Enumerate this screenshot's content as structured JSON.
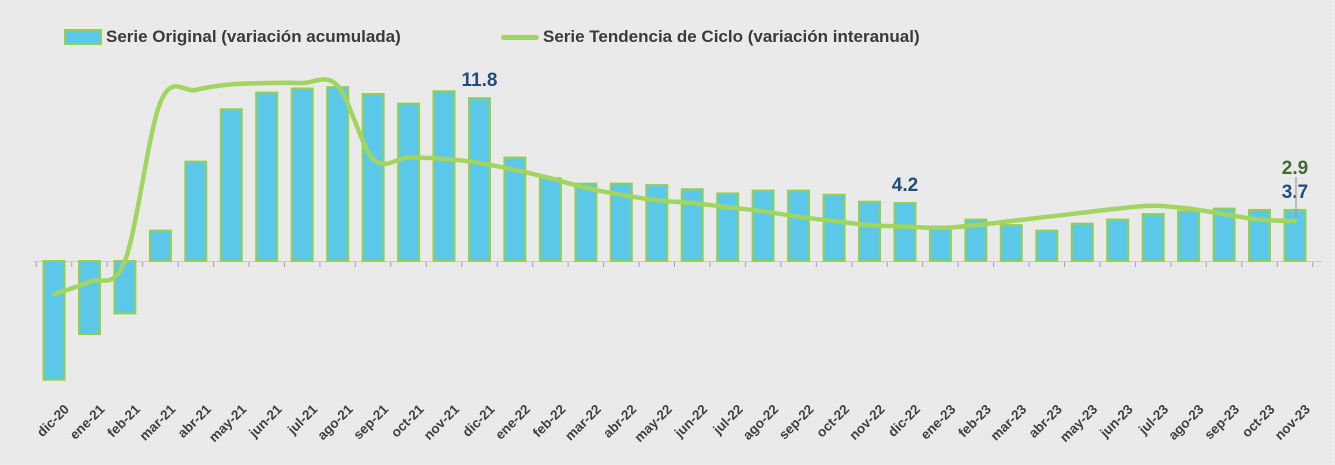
{
  "legend": {
    "items": [
      {
        "label": "Serie Original (variación acumulada)",
        "swatch": "bar-swatch"
      },
      {
        "label": "Serie Tendencia de Ciclo (variación interanual)",
        "swatch": "line-swatch"
      }
    ]
  },
  "chart_data": {
    "type": "bar",
    "subtype": "bar-with-smoothed-line-overlay",
    "categories": [
      "dic-20",
      "ene-21",
      "feb-21",
      "mar-21",
      "abr-21",
      "may-21",
      "jun-21",
      "jul-21",
      "ago-21",
      "sep-21",
      "oct-21",
      "nov-21",
      "dic-21",
      "ene-22",
      "feb-22",
      "mar-22",
      "abr-22",
      "may-22",
      "jun-22",
      "jul-22",
      "ago-22",
      "sep-22",
      "oct-22",
      "nov-22",
      "dic-22",
      "ene-23",
      "feb-23",
      "mar-23",
      "abr-23",
      "may-23",
      "jun-23",
      "jul-23",
      "ago-23",
      "sep-23",
      "oct-23",
      "nov-23"
    ],
    "series": [
      {
        "name": "Serie Original (variación acumulada)",
        "type": "bar",
        "values": [
          -8.6,
          -5.3,
          -3.8,
          2.2,
          7.2,
          11.0,
          12.2,
          12.5,
          12.6,
          12.1,
          11.4,
          12.3,
          11.8,
          7.5,
          6.0,
          5.6,
          5.6,
          5.5,
          5.2,
          4.9,
          5.1,
          5.1,
          4.8,
          4.3,
          4.2,
          2.5,
          3.0,
          2.6,
          2.2,
          2.7,
          3.0,
          3.4,
          3.6,
          3.8,
          3.7,
          3.7
        ]
      },
      {
        "name": "Serie Tendencia de Ciclo (variación interanual)",
        "type": "line",
        "values": [
          -2.4,
          -1.5,
          0.0,
          11.5,
          12.4,
          12.8,
          12.9,
          12.9,
          12.7,
          7.4,
          7.5,
          7.4,
          7.1,
          6.6,
          6.0,
          5.3,
          4.8,
          4.4,
          4.2,
          3.9,
          3.6,
          3.2,
          2.9,
          2.6,
          2.5,
          2.4,
          2.6,
          2.9,
          3.2,
          3.5,
          3.8,
          4.0,
          3.8,
          3.4,
          3.0,
          2.9
        ]
      }
    ],
    "data_labels": [
      {
        "series": 0,
        "category": "dic-21",
        "text": "11.8"
      },
      {
        "series": 0,
        "category": "dic-22",
        "text": "4.2"
      },
      {
        "series": 0,
        "category": "nov-23",
        "text": "3.7"
      },
      {
        "series": 1,
        "category": "nov-23",
        "text": "2.9",
        "leader_line": true
      }
    ],
    "title": "",
    "xlabel": "",
    "ylabel": "",
    "ylim": [
      -9,
      14
    ],
    "grid": false,
    "y_axis_visible": false,
    "x_axis_crosses_at": 0,
    "x_label_rotation_deg": -45,
    "legend_position": "top"
  },
  "colors": {
    "bar_fill": "#5BC8EA",
    "bar_border": "#92D050",
    "line": "#A2D55F",
    "bar_label": "#1F4E79",
    "line_label": "#46682C",
    "axis_line": "#cccccc",
    "tick": "#a3a3a3",
    "axis_text": "#3F3F3F",
    "leader": "#9b9b9b",
    "background": "#EBEBEB"
  }
}
